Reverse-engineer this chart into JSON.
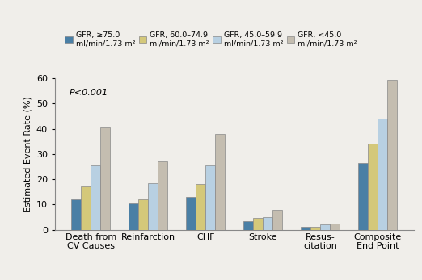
{
  "categories": [
    "Death from\nCV Causes",
    "Reinfarction",
    "CHF",
    "Stroke",
    "Resus-\ncitation",
    "Composite\nEnd Point"
  ],
  "series_values": [
    [
      12,
      10.5,
      13,
      3.5,
      1.0,
      26.5
    ],
    [
      17,
      12,
      18,
      4.5,
      1.2,
      34
    ],
    [
      25.5,
      18.5,
      25.5,
      5,
      2.2,
      44
    ],
    [
      40.5,
      27,
      38,
      8,
      2.5,
      59.5
    ]
  ],
  "colors": [
    "#4a7fa5",
    "#d4c87a",
    "#b8d0e2",
    "#c4bdb0"
  ],
  "legend_labels": [
    "GFR, ≥75.0\nml/min/1.73 m²",
    "GFR, 60.0–74.9\nml/min/1.73 m²",
    "GFR, 45.0–59.9\nml/min/1.73 m²",
    "GFR, <45.0\nml/min/1.73 m²"
  ],
  "ylabel": "Estimated Event Rate (%)",
  "ylim": [
    0,
    60
  ],
  "yticks": [
    0,
    10,
    20,
    30,
    40,
    50,
    60
  ],
  "annotation": "P<0.001",
  "bar_width": 0.17,
  "background_color": "#f0eeea",
  "plot_bg_color": "#f0eeea",
  "edge_color": "#888888"
}
